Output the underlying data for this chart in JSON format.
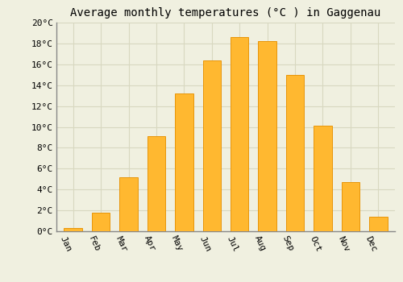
{
  "title": "Average monthly temperatures (°C ) in Gaggenau",
  "months": [
    "Jan",
    "Feb",
    "Mar",
    "Apr",
    "May",
    "Jun",
    "Jul",
    "Aug",
    "Sep",
    "Oct",
    "Nov",
    "Dec"
  ],
  "values": [
    0.3,
    1.8,
    5.2,
    9.1,
    13.2,
    16.4,
    18.6,
    18.2,
    15.0,
    10.1,
    4.7,
    1.4
  ],
  "bar_color": "#FFB830",
  "bar_edge_color": "#E8960A",
  "ylim": [
    0,
    20
  ],
  "yticks": [
    0,
    2,
    4,
    6,
    8,
    10,
    12,
    14,
    16,
    18,
    20
  ],
  "ytick_labels": [
    "0°C",
    "2°C",
    "4°C",
    "6°C",
    "8°C",
    "10°C",
    "12°C",
    "14°C",
    "16°C",
    "18°C",
    "20°C"
  ],
  "background_color": "#f0f0e0",
  "grid_color": "#d8d8c0",
  "title_fontsize": 10,
  "tick_fontsize": 8,
  "font_family": "monospace",
  "label_rotation": -65
}
